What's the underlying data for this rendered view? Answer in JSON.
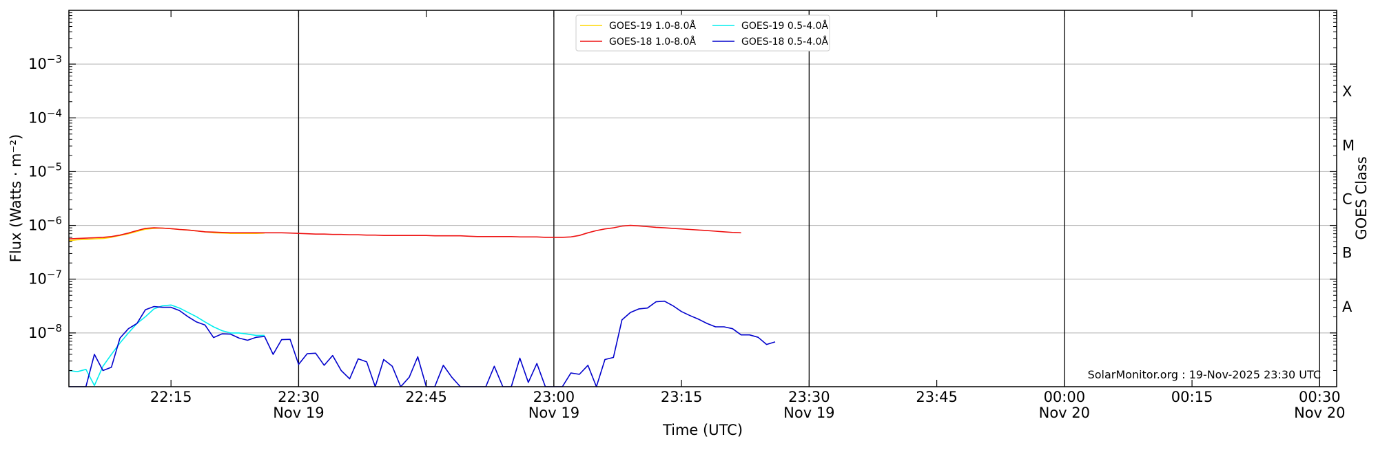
{
  "chart_data": {
    "type": "line",
    "xlabel": "Time (UTC)",
    "ylabel": "Flux (Watts · m⁻²)",
    "ylabel_right": "GOES Class",
    "y_scale": "log",
    "ylim": [
      1e-09,
      0.01
    ],
    "xlim": [
      "2025-11-19T22:03",
      "2025-11-20T00:32"
    ],
    "grid": "horizontal",
    "legend_position": "top-center",
    "credit": "SolarMonitor.org : 19-Nov-2025 23:30 UTC",
    "x_ticks": [
      {
        "time": "2025-11-19T22:15",
        "line1": "22:15",
        "line2": ""
      },
      {
        "time": "2025-11-19T22:30",
        "line1": "22:30",
        "line2": "Nov 19"
      },
      {
        "time": "2025-11-19T22:45",
        "line1": "22:45",
        "line2": ""
      },
      {
        "time": "2025-11-19T23:00",
        "line1": "23:00",
        "line2": "Nov 19"
      },
      {
        "time": "2025-11-19T23:15",
        "line1": "23:15",
        "line2": ""
      },
      {
        "time": "2025-11-19T23:30",
        "line1": "23:30",
        "line2": "Nov 19"
      },
      {
        "time": "2025-11-19T23:45",
        "line1": "23:45",
        "line2": ""
      },
      {
        "time": "2025-11-20T00:00",
        "line1": "00:00",
        "line2": "Nov 20"
      },
      {
        "time": "2025-11-20T00:15",
        "line1": "00:15",
        "line2": ""
      },
      {
        "time": "2025-11-20T00:30",
        "line1": "00:30",
        "line2": "Nov 20"
      }
    ],
    "y_ticks": [
      {
        "value": 1e-08,
        "mant": "10",
        "exp": "−8"
      },
      {
        "value": 1e-07,
        "mant": "10",
        "exp": "−7"
      },
      {
        "value": 1e-06,
        "mant": "10",
        "exp": "−6"
      },
      {
        "value": 1e-05,
        "mant": "10",
        "exp": "−5"
      },
      {
        "value": 0.0001,
        "mant": "10",
        "exp": "−4"
      },
      {
        "value": 0.001,
        "mant": "10",
        "exp": "−3"
      }
    ],
    "goes_classes": [
      {
        "label": "A",
        "value": 3.16e-08
      },
      {
        "label": "B",
        "value": 3.16e-07
      },
      {
        "label": "C",
        "value": 3.16e-06
      },
      {
        "label": "M",
        "value": 3.16e-05
      },
      {
        "label": "X",
        "value": 0.000316
      }
    ],
    "vertical_markers": [
      "2025-11-19T22:30",
      "2025-11-19T23:00",
      "2025-11-19T23:30",
      "2025-11-20T00:00",
      "2025-11-20T00:30"
    ],
    "series": [
      {
        "name": "GOES-19 1.0-8.0Å",
        "color": "#ffd700",
        "start": "2025-11-19T22:03",
        "values": [
          5.2e-07,
          5.4e-07,
          5.5e-07,
          5.6e-07,
          5.7e-07,
          6e-07,
          6.5e-07,
          7e-07,
          7.7e-07,
          8.5e-07,
          8.8e-07,
          8.9e-07,
          8.7e-07,
          8.4e-07,
          8.2e-07,
          7.9e-07,
          7.6e-07,
          7.3e-07,
          7.2e-07,
          7.1e-07,
          7.1e-07,
          7.1e-07,
          7.1e-07,
          7.2e-07
        ]
      },
      {
        "name": "GOES-18 1.0-8.0Å",
        "color": "#ee1111",
        "start": "2025-11-19T22:03",
        "values": [
          5.6e-07,
          5.7e-07,
          5.8e-07,
          5.9e-07,
          6e-07,
          6.2e-07,
          6.6e-07,
          7.2e-07,
          8e-07,
          8.8e-07,
          9e-07,
          8.9e-07,
          8.7e-07,
          8.4e-07,
          8.2e-07,
          7.9e-07,
          7.6e-07,
          7.5e-07,
          7.4e-07,
          7.3e-07,
          7.3e-07,
          7.3e-07,
          7.3e-07,
          7.3e-07,
          7.3e-07,
          7.3e-07,
          7.2e-07,
          7.1e-07,
          7e-07,
          6.9e-07,
          6.9e-07,
          6.8e-07,
          6.8e-07,
          6.7e-07,
          6.7e-07,
          6.6e-07,
          6.6e-07,
          6.5e-07,
          6.5e-07,
          6.5e-07,
          6.5e-07,
          6.5e-07,
          6.5e-07,
          6.4e-07,
          6.4e-07,
          6.4e-07,
          6.4e-07,
          6.3e-07,
          6.2e-07,
          6.2e-07,
          6.2e-07,
          6.2e-07,
          6.2e-07,
          6.1e-07,
          6.1e-07,
          6.1e-07,
          6e-07,
          6e-07,
          6e-07,
          6.1e-07,
          6.5e-07,
          7.3e-07,
          8e-07,
          8.6e-07,
          9e-07,
          9.7e-07,
          1e-06,
          9.8e-07,
          9.5e-07,
          9.2e-07,
          9e-07,
          8.8e-07,
          8.6e-07,
          8.4e-07,
          8.2e-07,
          8e-07,
          7.8e-07,
          7.6e-07,
          7.4e-07,
          7.3e-07
        ]
      },
      {
        "name": "GOES-19 0.5-4.0Å",
        "color": "#00eeee",
        "start": "2025-11-19T22:03",
        "values": [
          2e-09,
          1.9e-09,
          2.1e-09,
          1.05e-09,
          2.4e-09,
          4e-09,
          6.5e-09,
          1e-08,
          1.5e-08,
          2e-08,
          2.8e-08,
          3.2e-08,
          3.3e-08,
          2.9e-08,
          2.4e-08,
          2e-08,
          1.6e-08,
          1.3e-08,
          1.1e-08,
          1e-08,
          1e-08,
          9.5e-09,
          9e-09,
          9e-09
        ]
      },
      {
        "name": "GOES-18 0.5-4.0Å",
        "color": "#0000cc",
        "start": "2025-11-19T22:03",
        "values": [
          1e-09,
          1e-09,
          1e-09,
          4e-09,
          2e-09,
          2.3e-09,
          8e-09,
          1.2e-08,
          1.5e-08,
          2.7e-08,
          3.1e-08,
          3e-08,
          3e-08,
          2.6e-08,
          2e-08,
          1.6e-08,
          1.4e-08,
          8.2e-09,
          9.6e-09,
          9.5e-09,
          8e-09,
          7.3e-09,
          8.3e-09,
          8.6e-09,
          4e-09,
          7.5e-09,
          7.6e-09,
          2.6e-09,
          4.1e-09,
          4.2e-09,
          2.5e-09,
          3.8e-09,
          2e-09,
          1.4e-09,
          3.3e-09,
          2.9e-09,
          1e-09,
          3.2e-09,
          2.4e-09,
          1e-09,
          1.5e-09,
          3.6e-09,
          1e-09,
          1e-09,
          2.5e-09,
          1.5e-09,
          1e-09,
          1e-09,
          1e-09,
          1e-09,
          2.4e-09,
          1e-09,
          1e-09,
          3.4e-09,
          1.2e-09,
          2.7e-09,
          1e-09,
          1e-09,
          1e-09,
          1.8e-09,
          1.7e-09,
          2.5e-09,
          1e-09,
          3.2e-09,
          3.5e-09,
          1.75e-08,
          2.4e-08,
          2.8e-08,
          2.9e-08,
          3.8e-08,
          3.9e-08,
          3.2e-08,
          2.5e-08,
          2.1e-08,
          1.8e-08,
          1.5e-08,
          1.3e-08,
          1.3e-08,
          1.2e-08,
          9.2e-09,
          9.2e-09,
          8.3e-09,
          6.1e-09,
          6.8e-09
        ]
      }
    ]
  }
}
